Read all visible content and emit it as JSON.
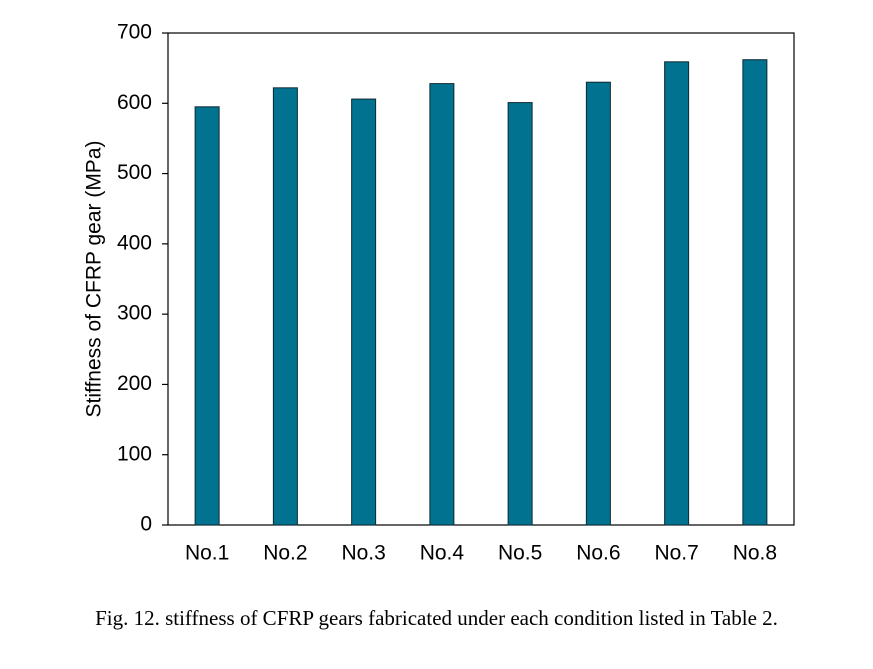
{
  "caption": "Fig. 12. stiffness of CFRP gears fabricated under each condition listed in Table 2.",
  "colors": {
    "bar_fill": "#01728f",
    "bar_stroke": "#0f2a33",
    "axis": "#000000"
  },
  "chart_data": {
    "type": "bar",
    "categories": [
      "No.1",
      "No.2",
      "No.3",
      "No.4",
      "No.5",
      "No.6",
      "No.7",
      "No.8"
    ],
    "values": [
      595,
      622,
      606,
      628,
      601,
      630,
      659,
      662
    ],
    "title": "",
    "xlabel": "",
    "ylabel": "Stiffness of CFRP gear (MPa)",
    "ylim": [
      0,
      700
    ],
    "yticks": [
      "0",
      "100",
      "200",
      "300",
      "400",
      "500",
      "600",
      "700"
    ],
    "grid": false,
    "legend": "none"
  }
}
